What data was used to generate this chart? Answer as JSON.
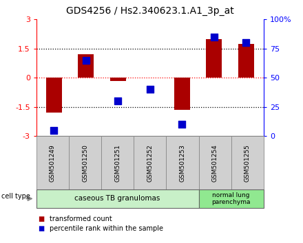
{
  "title": "GDS4256 / Hs2.340623.1.A1_3p_at",
  "samples": [
    "GSM501249",
    "GSM501250",
    "GSM501251",
    "GSM501252",
    "GSM501253",
    "GSM501254",
    "GSM501255"
  ],
  "red_bars": [
    -1.8,
    1.2,
    -0.15,
    0.02,
    -1.65,
    2.0,
    1.75
  ],
  "blue_dots": [
    5,
    65,
    30,
    40,
    10,
    85,
    80
  ],
  "ylim_left": [
    -3,
    3
  ],
  "ylim_right": [
    0,
    100
  ],
  "left_ticks": [
    -3,
    -1.5,
    0,
    1.5,
    3
  ],
  "right_ticks": [
    0,
    25,
    50,
    75,
    100
  ],
  "right_tick_labels": [
    "0",
    "25",
    "50",
    "75",
    "100%"
  ],
  "dotted_lines_black": [
    -1.5,
    1.5
  ],
  "dotted_line_red": 0,
  "groups": [
    {
      "label": "caseous TB granulomas",
      "n_samples": 5,
      "color": "#c8f0c8"
    },
    {
      "label": "normal lung\nparenchyma",
      "n_samples": 2,
      "color": "#90e890"
    }
  ],
  "cell_type_label": "cell type",
  "legend_red_label": "transformed count",
  "legend_blue_label": "percentile rank within the sample",
  "bar_color": "#aa0000",
  "dot_color": "#0000cc",
  "bar_width": 0.5,
  "dot_size": 55,
  "background_color": "#ffffff",
  "title_fontsize": 10,
  "tick_fontsize": 8,
  "label_fontsize": 7,
  "sample_box_color": "#d0d0d0",
  "sample_box_edge": "#888888"
}
